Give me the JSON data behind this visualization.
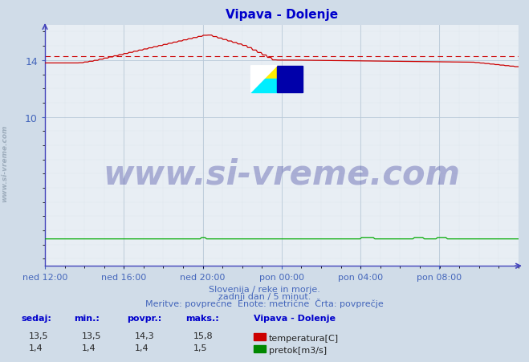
{
  "title": "Vipava - Dolenje",
  "title_color": "#0000cc",
  "bg_color": "#d0dce8",
  "plot_bg_color": "#e8eef4",
  "grid_color_major": "#b8c8d8",
  "grid_color_minor": "#d0dae4",
  "axis_color": "#4444bb",
  "tick_label_color": "#4466bb",
  "temp_color": "#cc0000",
  "flow_color": "#00aa00",
  "dashed_line_value": 14.3,
  "dashed_line_color": "#cc0000",
  "ylim": [
    -0.5,
    16.5
  ],
  "ytick_vals": [
    10,
    14
  ],
  "n_points": 288,
  "temp_min": 13.5,
  "temp_max": 15.8,
  "flow_base": 1.4,
  "xtick_labels": [
    "ned 12:00",
    "ned 16:00",
    "ned 20:00",
    "pon 00:00",
    "pon 04:00",
    "pon 08:00"
  ],
  "xtick_fracs": [
    0.0,
    0.1667,
    0.3333,
    0.5,
    0.6667,
    0.8333
  ],
  "subtitle1": "Slovenija / reke in morje.",
  "subtitle2": "zadnji dan / 5 minut.",
  "subtitle3": "Meritve: povprečne  Enote: metrične  Črta: povprečje",
  "watermark": "www.si-vreme.com",
  "watermark_color": "#1a1a8c",
  "watermark_alpha": 0.3,
  "watermark_fontsize": 30,
  "logo_yellow": "#ffee00",
  "logo_cyan": "#00eeff",
  "logo_blue": "#0000aa",
  "legend_title": "Vipava - Dolenje",
  "legend_items": [
    "temperatura[C]",
    "pretok[m3/s]"
  ],
  "legend_colors": [
    "#cc0000",
    "#008800"
  ],
  "stats_headers": [
    "sedaj:",
    "min.:",
    "povpr.:",
    "maks.:"
  ],
  "stats_temp": [
    "13,5",
    "13,5",
    "14,3",
    "15,8"
  ],
  "stats_flow": [
    "1,4",
    "1,4",
    "1,4",
    "1,5"
  ],
  "side_watermark": "www.si-vreme.com",
  "side_wm_color": "#8899aa",
  "side_wm_alpha": 0.7
}
